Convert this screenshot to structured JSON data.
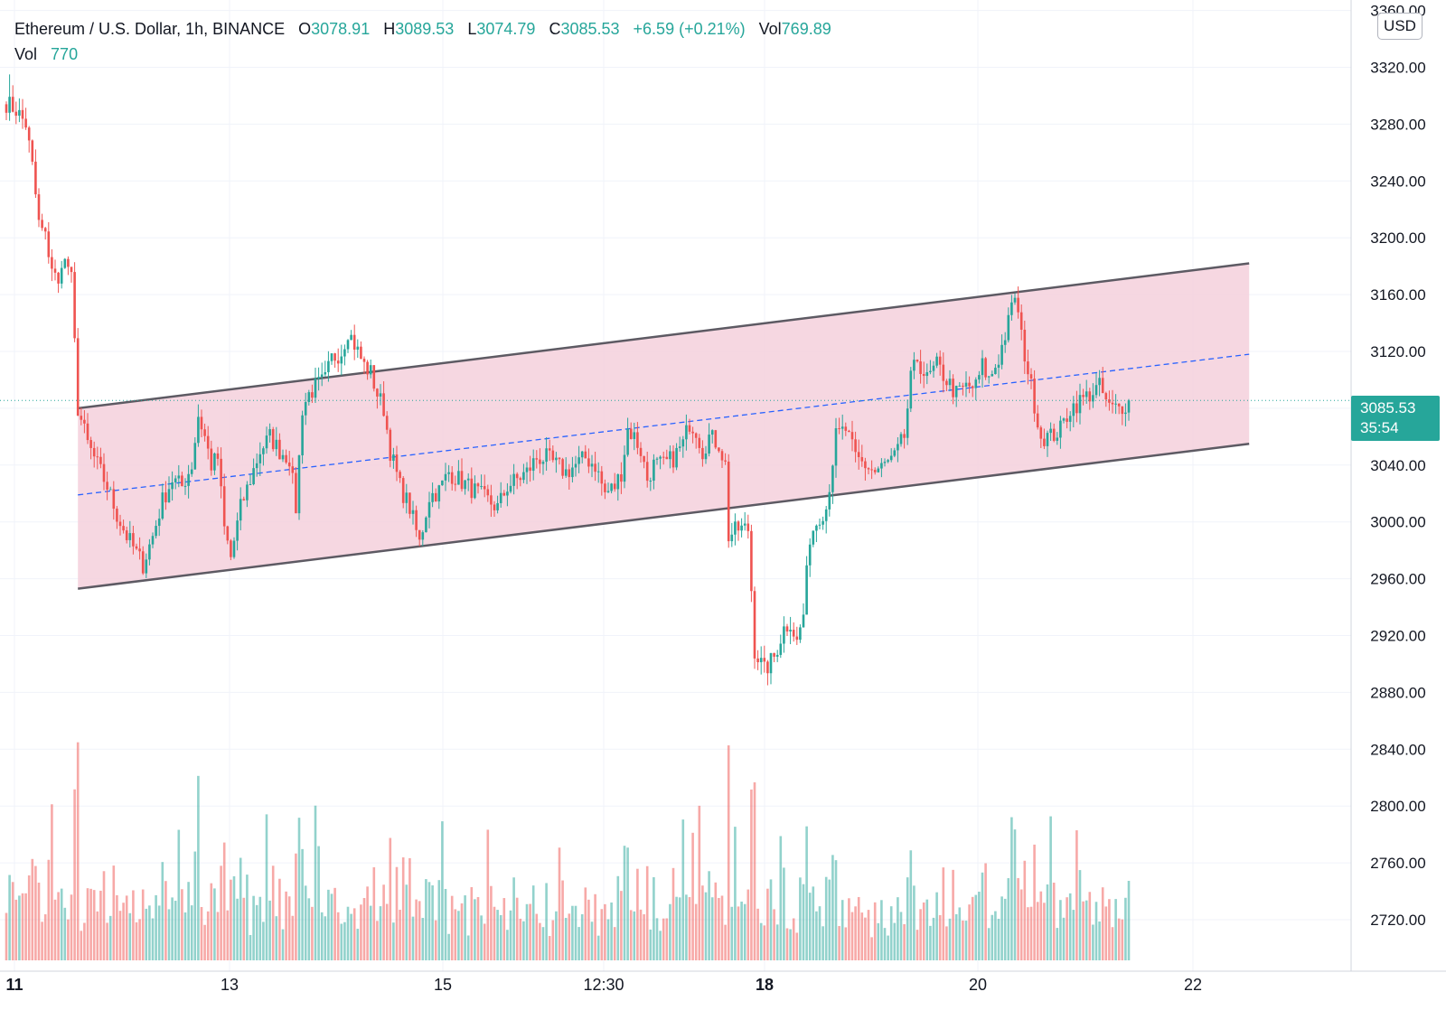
{
  "legend": {
    "symbol": "Ethereum / U.S. Dollar, 1h, BINANCE",
    "open_label": "O",
    "open": "3078.91",
    "high_label": "H",
    "high": "3089.53",
    "low_label": "L",
    "low": "3074.79",
    "close_label": "C",
    "close": "3085.53",
    "change": "+6.59 (+0.21%)",
    "vol_label": "Vol",
    "vol": "769.89",
    "vol_row_label": "Vol",
    "vol_row_value": "770"
  },
  "currency": "USD",
  "last_price": {
    "price": "3085.53",
    "countdown": "35:54"
  },
  "colors": {
    "up": "#26a69a",
    "down": "#ef5350",
    "channel_fill": "#f5d0dc",
    "channel_line": "#5d5a63",
    "midline": "#2962ff"
  },
  "chart_data": {
    "type": "candlestick",
    "interval": "1h",
    "x_labels": [
      "11",
      "13",
      "15",
      "12:30",
      "18",
      "20",
      "22"
    ],
    "y_ticks": [
      2720,
      2760,
      2800,
      2840,
      2880,
      2920,
      2960,
      3000,
      3040,
      3080,
      3120,
      3160,
      3200,
      3240,
      3280,
      3320,
      3360
    ],
    "y_tick_labels": [
      "2720.00",
      "2760.00",
      "2800.00",
      "2840.00",
      "2880.00",
      "2920.00",
      "2960.00",
      "3000.00",
      "3040.00",
      "3080.00",
      "3120.00",
      "3160.00",
      "3200.00",
      "3240.00",
      "3280.00",
      "3320.00",
      "3360.00"
    ],
    "ylim": [
      2685,
      3368
    ],
    "last_price": 3085.53,
    "channel": {
      "upper": [
        [
          3080,
          3182
        ]
      ],
      "lower": [
        [
          2953,
          3055
        ]
      ],
      "mid": [
        3019,
        3118
      ]
    },
    "close_path": [
      [
        0,
        3295
      ],
      [
        3,
        3290
      ],
      [
        6,
        3280
      ],
      [
        8,
        3250
      ],
      [
        10,
        3210
      ],
      [
        12,
        3200
      ],
      [
        14,
        3180
      ],
      [
        16,
        3165
      ],
      [
        17,
        3185
      ],
      [
        19,
        3180
      ],
      [
        20,
        3170
      ],
      [
        22,
        3080
      ],
      [
        25,
        3055
      ],
      [
        28,
        3040
      ],
      [
        31,
        3025
      ],
      [
        34,
        3005
      ],
      [
        37,
        2990
      ],
      [
        40,
        2978
      ],
      [
        42,
        2970
      ],
      [
        45,
        2990
      ],
      [
        48,
        3015
      ],
      [
        51,
        3030
      ],
      [
        54,
        3025
      ],
      [
        57,
        3040
      ],
      [
        59,
        3075
      ],
      [
        61,
        3060
      ],
      [
        63,
        3040
      ],
      [
        65,
        3045
      ],
      [
        67,
        2995
      ],
      [
        69,
        2975
      ],
      [
        72,
        3010
      ],
      [
        75,
        3030
      ],
      [
        78,
        3050
      ],
      [
        81,
        3060
      ],
      [
        84,
        3050
      ],
      [
        87,
        3045
      ],
      [
        89,
        3010
      ],
      [
        91,
        3080
      ],
      [
        93,
        3090
      ],
      [
        95,
        3095
      ],
      [
        98,
        3100
      ],
      [
        100,
        3115
      ],
      [
        103,
        3120
      ],
      [
        105,
        3135
      ],
      [
        107,
        3125
      ],
      [
        110,
        3110
      ],
      [
        112,
        3105
      ],
      [
        114,
        3090
      ],
      [
        116,
        3080
      ],
      [
        118,
        3050
      ],
      [
        121,
        3025
      ],
      [
        124,
        3010
      ],
      [
        127,
        2985
      ],
      [
        130,
        3018
      ],
      [
        133,
        3022
      ],
      [
        136,
        3035
      ],
      [
        139,
        3030
      ],
      [
        142,
        3025
      ],
      [
        145,
        3020
      ],
      [
        148,
        3015
      ],
      [
        151,
        3010
      ],
      [
        154,
        3025
      ],
      [
        157,
        3030
      ],
      [
        160,
        3035
      ],
      [
        163,
        3045
      ],
      [
        166,
        3045
      ],
      [
        169,
        3040
      ],
      [
        172,
        3035
      ],
      [
        175,
        3040
      ],
      [
        178,
        3045
      ],
      [
        181,
        3040
      ],
      [
        184,
        3020
      ],
      [
        187,
        3025
      ],
      [
        189,
        3035
      ],
      [
        191,
        3065
      ],
      [
        193,
        3060
      ],
      [
        195,
        3050
      ],
      [
        197,
        3030
      ],
      [
        199,
        3040
      ],
      [
        202,
        3040
      ],
      [
        205,
        3045
      ],
      [
        208,
        3055
      ],
      [
        210,
        3070
      ],
      [
        212,
        3065
      ],
      [
        214,
        3050
      ],
      [
        216,
        3060
      ],
      [
        219,
        3055
      ],
      [
        221,
        3040
      ],
      [
        222,
        2990
      ],
      [
        225,
        2995
      ],
      [
        228,
        2995
      ],
      [
        230,
        2910
      ],
      [
        233,
        2895
      ],
      [
        236,
        2905
      ],
      [
        239,
        2925
      ],
      [
        241,
        2930
      ],
      [
        243,
        2915
      ],
      [
        245,
        2935
      ],
      [
        247,
        2990
      ],
      [
        250,
        3005
      ],
      [
        252,
        3010
      ],
      [
        255,
        3060
      ],
      [
        258,
        3065
      ],
      [
        261,
        3045
      ],
      [
        264,
        3040
      ],
      [
        267,
        3035
      ],
      [
        270,
        3040
      ],
      [
        273,
        3045
      ],
      [
        276,
        3060
      ],
      [
        278,
        3100
      ],
      [
        280,
        3115
      ],
      [
        283,
        3100
      ],
      [
        286,
        3110
      ],
      [
        289,
        3100
      ],
      [
        292,
        3090
      ],
      [
        295,
        3095
      ],
      [
        298,
        3095
      ],
      [
        300,
        3110
      ],
      [
        302,
        3100
      ],
      [
        305,
        3115
      ],
      [
        308,
        3140
      ],
      [
        310,
        3160
      ],
      [
        312,
        3130
      ],
      [
        315,
        3095
      ],
      [
        318,
        3060
      ],
      [
        321,
        3060
      ],
      [
        324,
        3065
      ],
      [
        327,
        3080
      ],
      [
        330,
        3085
      ],
      [
        333,
        3090
      ],
      [
        336,
        3095
      ],
      [
        339,
        3080
      ],
      [
        342,
        3080
      ],
      [
        345,
        3085
      ]
    ],
    "notable_wicks": {
      "high": 3315,
      "low": 2885
    }
  }
}
